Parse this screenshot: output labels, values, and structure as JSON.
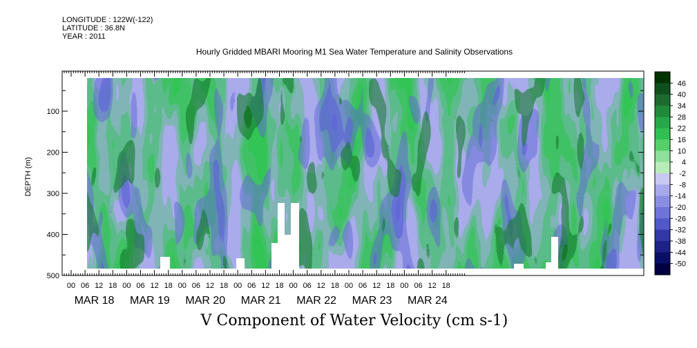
{
  "header": {
    "longitude": "LONGITUDE : 122W(-122)",
    "latitude": "LATITUDE : 36.8N",
    "year": "YEAR : 2011"
  },
  "chart_data": {
    "type": "heatmap",
    "title": "Hourly Gridded MBARI Mooring M1 Sea Water Temperature and Salinity Observations",
    "xlabel": "V Component of Water Velocity (cm s-1)",
    "ylabel": "DEPTH (m)",
    "ylim": [
      500,
      0
    ],
    "y_ticks": [
      100,
      200,
      300,
      400,
      500
    ],
    "x_hour_ticks": [
      "00",
      "06",
      "12",
      "18",
      "00",
      "06",
      "12",
      "18",
      "00",
      "06",
      "12",
      "18",
      "00",
      "06",
      "12",
      "18",
      "00",
      "06",
      "12",
      "18",
      "00",
      "06",
      "12",
      "18",
      "00",
      "06",
      "12",
      "18"
    ],
    "x_day_labels": [
      "MAR 18",
      "MAR 19",
      "MAR 20",
      "MAR 21",
      "MAR 22",
      "MAR 23",
      "MAR 24"
    ],
    "colorbar": {
      "levels": [
        46,
        40,
        34,
        28,
        22,
        16,
        10,
        4,
        -2,
        -8,
        -14,
        -20,
        -26,
        -32,
        -38,
        -44,
        -50
      ],
      "colors": [
        "#003300",
        "#0f4f1e",
        "#1d6a2f",
        "#1f8a3a",
        "#25a847",
        "#2fc052",
        "#56d06a",
        "#8fe09a",
        "#b8ecb8",
        "#c8c8f2",
        "#a7a9ea",
        "#8a8ee2",
        "#6e74d9",
        "#5158c9",
        "#3238a8",
        "#1c2288",
        "#0a0f66",
        "#010140"
      ]
    },
    "series": [
      {
        "x_hours_from_mar18_00": [
          0,
          6,
          12,
          18,
          24,
          30,
          36,
          42,
          48,
          54,
          60,
          66,
          72,
          78,
          84,
          90,
          96,
          102,
          108,
          114,
          120,
          126,
          132,
          138,
          144,
          150,
          156,
          162
        ],
        "values_at_100m": [
          -8,
          -10,
          -6,
          4,
          22,
          16,
          20,
          28,
          22,
          10,
          16,
          14,
          12,
          20,
          28,
          22,
          26,
          24,
          22,
          10,
          16,
          12,
          30,
          32,
          16,
          10,
          4,
          2
        ]
      }
    ]
  }
}
